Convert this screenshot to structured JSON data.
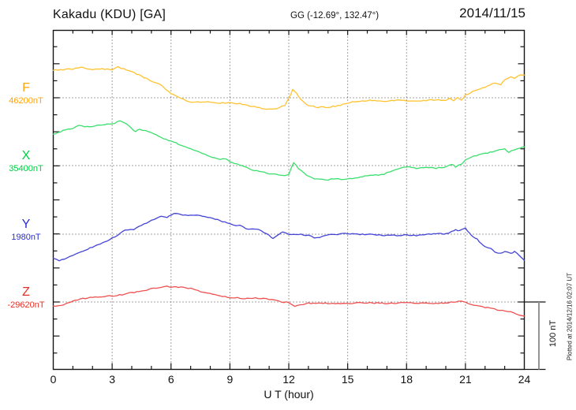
{
  "header": {
    "station_title": "Kakadu (KDU)  [GA]",
    "coordinates": "GG (-12.69°, 132.47°)",
    "date": "2014/11/15"
  },
  "x_axis": {
    "label": "U T (hour)",
    "ticks": [
      "0",
      "3",
      "6",
      "9",
      "12",
      "15",
      "18",
      "21",
      "24"
    ]
  },
  "scale_bar": {
    "label": "100 nT"
  },
  "footer_note": "Plotted at 2014/12/16 02:07 UT",
  "channels": [
    {
      "letter": "F",
      "baseline_label": "46200nT",
      "label_color": "#FFA40B",
      "trace_color": "#FFC230"
    },
    {
      "letter": "X",
      "baseline_label": "35400nT",
      "label_color": "#00CE44",
      "trace_color": "#3ADF6E"
    },
    {
      "letter": "Y",
      "baseline_label": "1980nT",
      "label_color": "#2C2CD0",
      "trace_color": "#4444D6"
    },
    {
      "letter": "Z",
      "baseline_label": "-29620nT",
      "label_color": "#E43026",
      "trace_color": "#EF5050"
    }
  ],
  "chart_data": {
    "type": "line",
    "title": "Kakadu (KDU) [GA] magnetogram, 2014/11/15",
    "xlabel": "U T (hour)",
    "x_range": [
      0,
      24
    ],
    "x_ticks": [
      0,
      3,
      6,
      9,
      12,
      15,
      18,
      21,
      24
    ],
    "grid": "dotted vertical every 3 h, dotted horizontal at each channel baseline",
    "scale_nT_per_division": 100,
    "series": [
      {
        "name": "F",
        "baseline_nT": 46200,
        "unit": "nT",
        "points": [
          [
            0,
            41
          ],
          [
            0.5,
            42
          ],
          [
            1,
            43
          ],
          [
            1.4,
            46
          ],
          [
            2,
            42
          ],
          [
            2.5,
            43
          ],
          [
            3,
            42
          ],
          [
            3.3,
            46
          ],
          [
            3.6,
            43
          ],
          [
            4,
            39
          ],
          [
            4.5,
            32
          ],
          [
            5,
            25
          ],
          [
            5.5,
            19
          ],
          [
            6,
            6
          ],
          [
            6.4,
            0
          ],
          [
            7,
            -6
          ],
          [
            7.5,
            -7
          ],
          [
            8,
            -6
          ],
          [
            8.5,
            -8
          ],
          [
            9,
            -7
          ],
          [
            9.5,
            -9
          ],
          [
            10,
            -12
          ],
          [
            10.5,
            -15
          ],
          [
            11,
            -17
          ],
          [
            11.5,
            -15
          ],
          [
            11.8,
            -11
          ],
          [
            12,
            -1
          ],
          [
            12.2,
            12
          ],
          [
            12.4,
            7
          ],
          [
            12.6,
            -2
          ],
          [
            12.8,
            -8
          ],
          [
            13,
            -12
          ],
          [
            13.5,
            -14
          ],
          [
            14,
            -14
          ],
          [
            14.5,
            -12
          ],
          [
            15,
            -8
          ],
          [
            15.5,
            -5
          ],
          [
            16,
            -4
          ],
          [
            16.5,
            -4
          ],
          [
            17,
            -5
          ],
          [
            17.5,
            -4
          ],
          [
            18,
            -4
          ],
          [
            18.5,
            -5
          ],
          [
            19,
            -4
          ],
          [
            19.5,
            -3
          ],
          [
            20,
            -4
          ],
          [
            20.2,
            0
          ],
          [
            20.4,
            -5
          ],
          [
            20.6,
            1
          ],
          [
            20.8,
            -4
          ],
          [
            21,
            4
          ],
          [
            21.5,
            11
          ],
          [
            22,
            16
          ],
          [
            22.5,
            22
          ],
          [
            22.8,
            20
          ],
          [
            23,
            27
          ],
          [
            23.3,
            32
          ],
          [
            23.5,
            29
          ],
          [
            23.8,
            34
          ],
          [
            24,
            34
          ]
        ]
      },
      {
        "name": "X",
        "baseline_nT": 35400,
        "unit": "nT",
        "points": [
          [
            0,
            47
          ],
          [
            0.5,
            52
          ],
          [
            1,
            56
          ],
          [
            1.3,
            60
          ],
          [
            1.6,
            58
          ],
          [
            2,
            59
          ],
          [
            2.5,
            61
          ],
          [
            3,
            62
          ],
          [
            3.4,
            67
          ],
          [
            3.7,
            63
          ],
          [
            4,
            55
          ],
          [
            4.2,
            51
          ],
          [
            4.4,
            54
          ],
          [
            4.7,
            52
          ],
          [
            5,
            49
          ],
          [
            5.5,
            42
          ],
          [
            6,
            36
          ],
          [
            6.5,
            31
          ],
          [
            7,
            25
          ],
          [
            7.5,
            20
          ],
          [
            8,
            14
          ],
          [
            8.5,
            9
          ],
          [
            8.8,
            10
          ],
          [
            9,
            6
          ],
          [
            9.5,
            1
          ],
          [
            10,
            -5
          ],
          [
            10.5,
            -9
          ],
          [
            11,
            -12
          ],
          [
            11.5,
            -14
          ],
          [
            11.8,
            -15
          ],
          [
            12,
            -13
          ],
          [
            12.25,
            5
          ],
          [
            12.5,
            -5
          ],
          [
            12.8,
            -12
          ],
          [
            13,
            -16
          ],
          [
            13.3,
            -19
          ],
          [
            13.7,
            -21
          ],
          [
            14,
            -21
          ],
          [
            14.3,
            -20
          ],
          [
            15,
            -20
          ],
          [
            15.5,
            -18
          ],
          [
            16,
            -15
          ],
          [
            16.3,
            -14
          ],
          [
            16.7,
            -14
          ],
          [
            17,
            -11
          ],
          [
            17.3,
            -8
          ],
          [
            17.7,
            -4
          ],
          [
            18,
            -2
          ],
          [
            18.5,
            -4
          ],
          [
            19,
            -2
          ],
          [
            19.5,
            -4
          ],
          [
            20,
            -2
          ],
          [
            20.3,
            2
          ],
          [
            20.5,
            -2
          ],
          [
            20.8,
            2
          ],
          [
            21,
            9
          ],
          [
            21.3,
            12
          ],
          [
            21.7,
            17
          ],
          [
            22,
            18
          ],
          [
            22.5,
            22
          ],
          [
            23,
            25
          ],
          [
            23.2,
            20
          ],
          [
            23.5,
            24
          ],
          [
            23.8,
            27
          ],
          [
            24,
            28
          ]
        ]
      },
      {
        "name": "Y",
        "baseline_nT": 1980,
        "unit": "nT",
        "points": [
          [
            0,
            -36
          ],
          [
            0.3,
            -40
          ],
          [
            0.7,
            -35
          ],
          [
            1,
            -31
          ],
          [
            1.5,
            -25
          ],
          [
            2,
            -19
          ],
          [
            2.5,
            -13
          ],
          [
            3,
            -6
          ],
          [
            3.3,
            -1
          ],
          [
            3.5,
            4
          ],
          [
            3.8,
            7
          ],
          [
            4.1,
            6
          ],
          [
            4.5,
            14
          ],
          [
            5,
            20
          ],
          [
            5.5,
            27
          ],
          [
            5.8,
            25
          ],
          [
            6,
            29
          ],
          [
            6.3,
            31
          ],
          [
            6.6,
            29
          ],
          [
            7,
            28
          ],
          [
            7.3,
            29
          ],
          [
            7.6,
            27
          ],
          [
            8,
            25
          ],
          [
            8.5,
            20
          ],
          [
            9,
            15
          ],
          [
            9.3,
            12
          ],
          [
            9.5,
            13
          ],
          [
            9.8,
            9
          ],
          [
            10,
            7
          ],
          [
            10.3,
            8
          ],
          [
            10.6,
            5
          ],
          [
            11,
            -2
          ],
          [
            11.2,
            -6
          ],
          [
            11.5,
            0
          ],
          [
            11.7,
            4
          ],
          [
            12,
            0
          ],
          [
            12.5,
            0
          ],
          [
            13,
            -2
          ],
          [
            13.3,
            -5
          ],
          [
            13.7,
            -4
          ],
          [
            14,
            -1
          ],
          [
            14.5,
            0
          ],
          [
            15,
            1
          ],
          [
            15.5,
            0
          ],
          [
            16,
            0
          ],
          [
            16.5,
            -1
          ],
          [
            17,
            -2
          ],
          [
            17.5,
            -2
          ],
          [
            18,
            -1
          ],
          [
            18.5,
            -2
          ],
          [
            19,
            0
          ],
          [
            19.5,
            1
          ],
          [
            20,
            0
          ],
          [
            20.3,
            4
          ],
          [
            20.5,
            7
          ],
          [
            20.7,
            5
          ],
          [
            21,
            9
          ],
          [
            21.2,
            2
          ],
          [
            21.4,
            -4
          ],
          [
            21.6,
            -7
          ],
          [
            21.8,
            -14
          ],
          [
            22,
            -18
          ],
          [
            22.3,
            -22
          ],
          [
            22.5,
            -27
          ],
          [
            22.8,
            -29
          ],
          [
            23,
            -26
          ],
          [
            23.3,
            -29
          ],
          [
            23.5,
            -26
          ],
          [
            23.7,
            -31
          ],
          [
            24,
            -39
          ]
        ]
      },
      {
        "name": "Z",
        "baseline_nT": -29620,
        "unit": "nT",
        "points": [
          [
            0,
            -6
          ],
          [
            0.4,
            -5
          ],
          [
            0.8,
            -1
          ],
          [
            1,
            1
          ],
          [
            1.5,
            5
          ],
          [
            2,
            7
          ],
          [
            2.5,
            8
          ],
          [
            3,
            9
          ],
          [
            3.5,
            11
          ],
          [
            4,
            14
          ],
          [
            4.5,
            16
          ],
          [
            5,
            20
          ],
          [
            5.5,
            22
          ],
          [
            5.8,
            24
          ],
          [
            6,
            22
          ],
          [
            6.5,
            22
          ],
          [
            7,
            20
          ],
          [
            7.5,
            16
          ],
          [
            8,
            13
          ],
          [
            8.5,
            9
          ],
          [
            9,
            7
          ],
          [
            9.5,
            6
          ],
          [
            10,
            5
          ],
          [
            10.3,
            6
          ],
          [
            10.7,
            5
          ],
          [
            11,
            4
          ],
          [
            11.5,
            1
          ],
          [
            12,
            -1
          ],
          [
            12.3,
            -6
          ],
          [
            12.6,
            -4
          ],
          [
            13,
            -2
          ],
          [
            13.5,
            -2
          ],
          [
            14,
            -2
          ],
          [
            15,
            -2
          ],
          [
            16,
            -1
          ],
          [
            17,
            -2
          ],
          [
            18,
            -1
          ],
          [
            18.5,
            -2
          ],
          [
            19,
            -1
          ],
          [
            19.5,
            -2
          ],
          [
            20,
            -1
          ],
          [
            20.5,
            0
          ],
          [
            20.8,
            2
          ],
          [
            21,
            -1
          ],
          [
            21.3,
            -4
          ],
          [
            21.6,
            -6
          ],
          [
            22,
            -8
          ],
          [
            22.5,
            -11
          ],
          [
            23,
            -13
          ],
          [
            23.3,
            -15
          ],
          [
            23.6,
            -18
          ],
          [
            24,
            -21
          ]
        ]
      }
    ]
  }
}
